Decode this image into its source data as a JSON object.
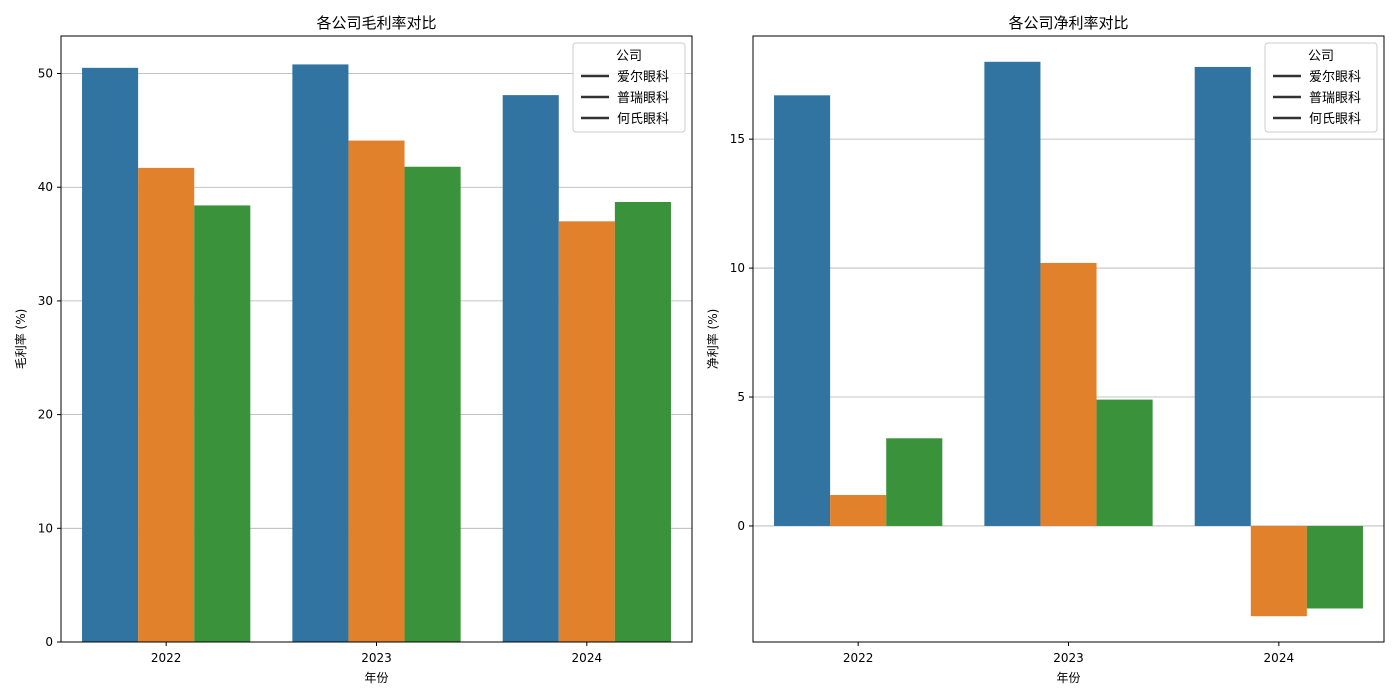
{
  "chart_data": [
    {
      "type": "bar",
      "title": "各公司毛利率对比",
      "xlabel": "年份",
      "ylabel": "毛利率 (%)",
      "categories": [
        "2022",
        "2023",
        "2024"
      ],
      "series": [
        {
          "name": "爱尔眼科",
          "color": "#3274a1",
          "values": [
            50.5,
            50.8,
            48.1
          ]
        },
        {
          "name": "普瑞眼科",
          "color": "#e1812c",
          "values": [
            41.7,
            44.1,
            37.0
          ]
        },
        {
          "name": "何氏眼科",
          "color": "#3a923a",
          "values": [
            38.4,
            41.8,
            38.7
          ]
        }
      ],
      "ylim": [
        0,
        53.3
      ],
      "yticks": [
        0,
        10,
        20,
        30,
        40,
        50
      ],
      "grid": "y",
      "legend": {
        "title": "公司",
        "position": "upper-right"
      }
    },
    {
      "type": "bar",
      "title": "各公司净利率对比",
      "xlabel": "年份",
      "ylabel": "净利率 (%)",
      "categories": [
        "2022",
        "2023",
        "2024"
      ],
      "series": [
        {
          "name": "爱尔眼科",
          "color": "#3274a1",
          "values": [
            16.7,
            18.0,
            17.8
          ]
        },
        {
          "name": "普瑞眼科",
          "color": "#e1812c",
          "values": [
            1.2,
            10.2,
            -3.5
          ]
        },
        {
          "name": "何氏眼科",
          "color": "#3a923a",
          "values": [
            3.4,
            4.9,
            -3.2
          ]
        }
      ],
      "ylim": [
        -4.5,
        19.0
      ],
      "yticks": [
        0,
        5,
        10,
        15
      ],
      "grid": "y",
      "legend": {
        "title": "公司",
        "position": "upper-right"
      }
    }
  ]
}
